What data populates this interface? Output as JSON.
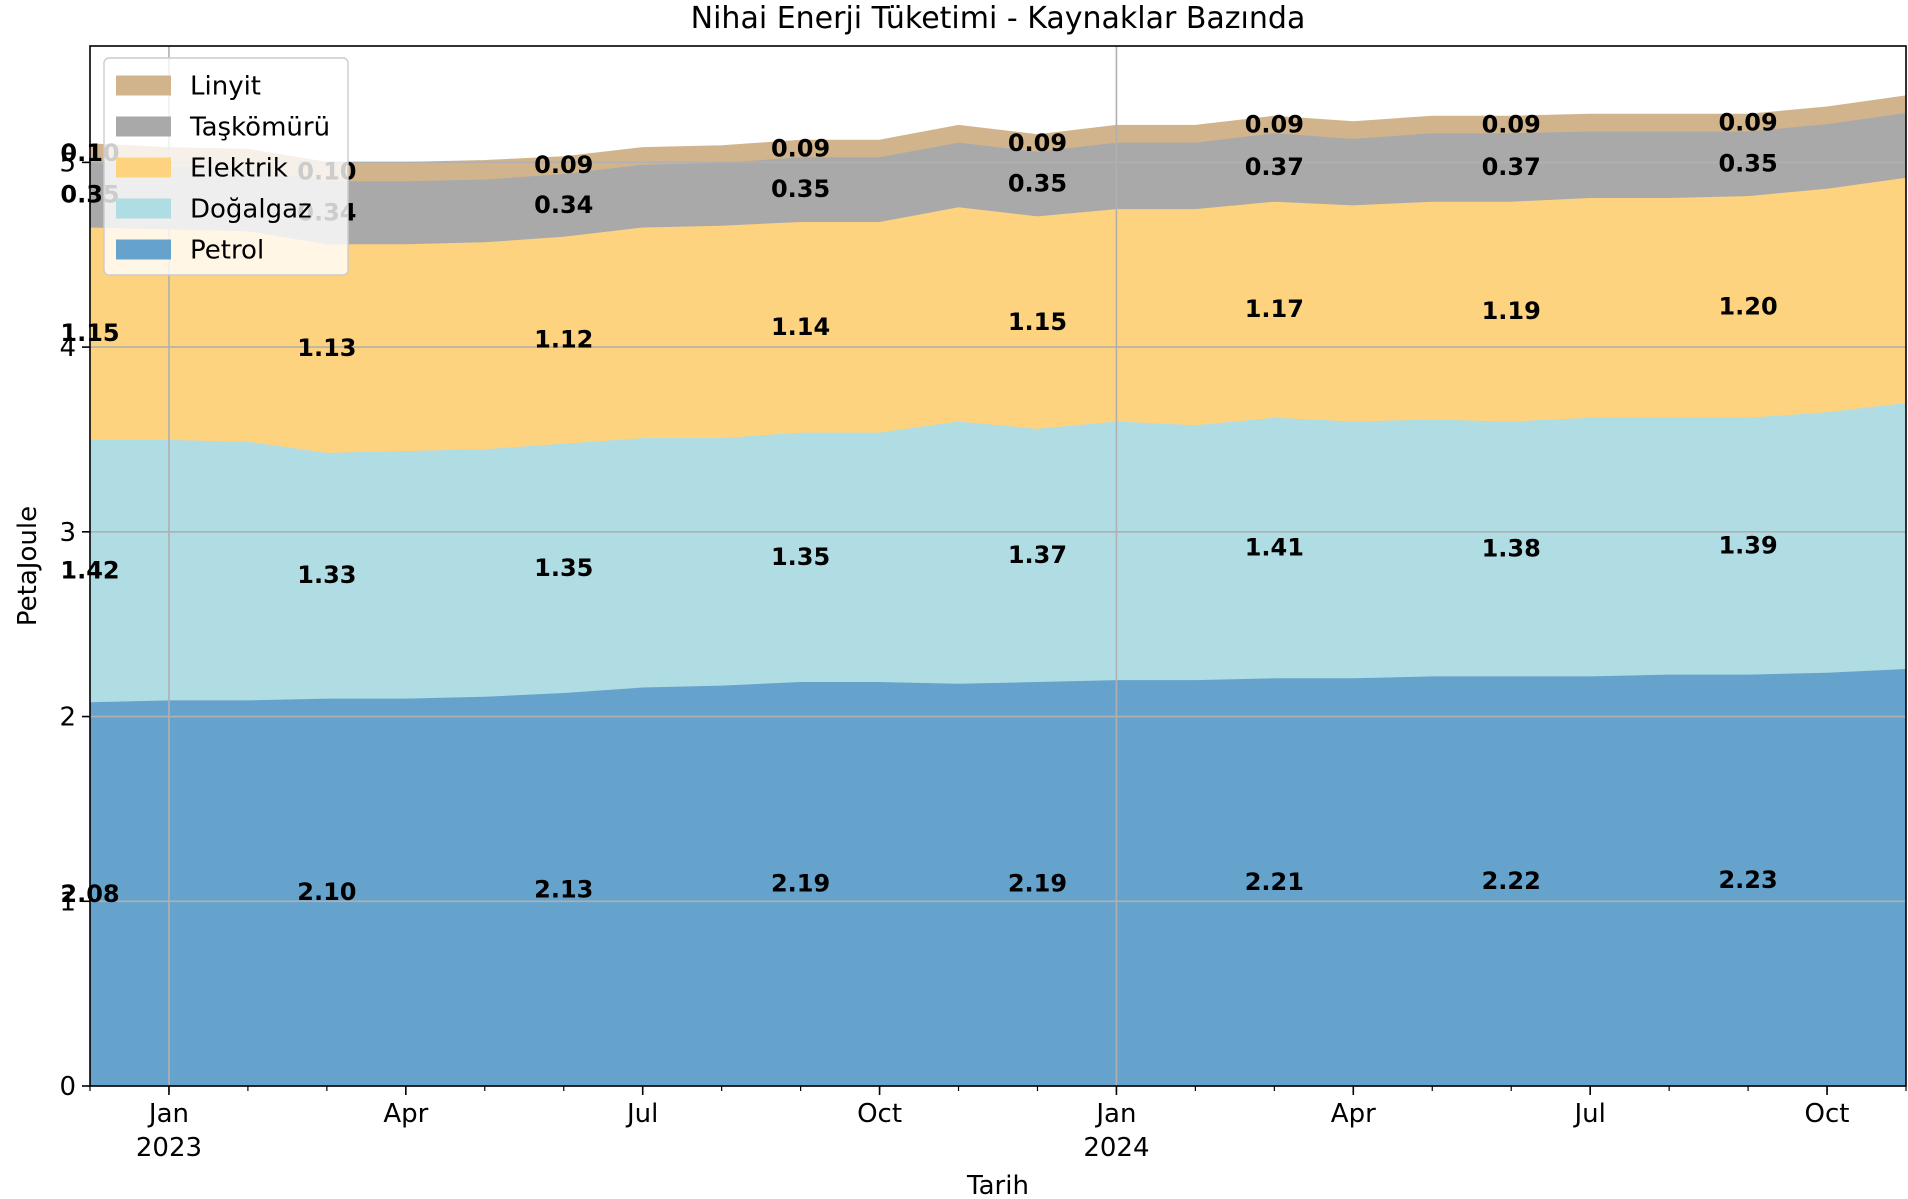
{
  "chart_data": {
    "type": "area",
    "title": "Nihai Enerji Tüketimi - Kaynaklar Bazında",
    "xlabel": "Tarih",
    "ylabel": "PetaJoule",
    "x_range": [
      "2022-12",
      "2024-11"
    ],
    "ylim": [
      0,
      5.63
    ],
    "y_ticks": [
      0,
      1,
      2,
      3,
      4,
      5
    ],
    "x_ticks": [
      {
        "date": "2023-01",
        "label": "Jan",
        "sublabel": "2023"
      },
      {
        "date": "2023-04",
        "label": "Apr",
        "sublabel": ""
      },
      {
        "date": "2023-07",
        "label": "Jul",
        "sublabel": ""
      },
      {
        "date": "2023-10",
        "label": "Oct",
        "sublabel": ""
      },
      {
        "date": "2024-01",
        "label": "Jan",
        "sublabel": "2024"
      },
      {
        "date": "2024-04",
        "label": "Apr",
        "sublabel": ""
      },
      {
        "date": "2024-07",
        "label": "Jul",
        "sublabel": ""
      },
      {
        "date": "2024-10",
        "label": "Oct",
        "sublabel": ""
      }
    ],
    "grid": true,
    "legend_position": "top-left",
    "x": [
      "2022-12",
      "2023-01",
      "2023-02",
      "2023-03",
      "2023-04",
      "2023-05",
      "2023-06",
      "2023-07",
      "2023-08",
      "2023-09",
      "2023-10",
      "2023-11",
      "2023-12",
      "2024-01",
      "2024-02",
      "2024-03",
      "2024-04",
      "2024-05",
      "2024-06",
      "2024-07",
      "2024-08",
      "2024-09",
      "2024-10",
      "2024-11"
    ],
    "series": [
      {
        "name": "Petrol",
        "color": "#66a3cc",
        "values": [
          2.08,
          2.09,
          2.09,
          2.1,
          2.1,
          2.11,
          2.13,
          2.16,
          2.17,
          2.19,
          2.19,
          2.18,
          2.19,
          2.2,
          2.2,
          2.21,
          2.21,
          2.22,
          2.22,
          2.22,
          2.23,
          2.23,
          2.24,
          2.26
        ]
      },
      {
        "name": "Doğalgaz",
        "color": "#b0dde4",
        "values": [
          1.42,
          1.41,
          1.4,
          1.33,
          1.34,
          1.34,
          1.35,
          1.35,
          1.34,
          1.35,
          1.35,
          1.42,
          1.37,
          1.4,
          1.38,
          1.41,
          1.39,
          1.39,
          1.38,
          1.4,
          1.39,
          1.39,
          1.41,
          1.44
        ]
      },
      {
        "name": "Elektrik",
        "color": "#fdd380",
        "values": [
          1.15,
          1.14,
          1.14,
          1.13,
          1.12,
          1.12,
          1.12,
          1.14,
          1.15,
          1.14,
          1.14,
          1.16,
          1.15,
          1.15,
          1.17,
          1.17,
          1.17,
          1.18,
          1.19,
          1.19,
          1.19,
          1.2,
          1.21,
          1.22
        ]
      },
      {
        "name": "Taşkömürü",
        "color": "#a9a9a9",
        "values": [
          0.35,
          0.34,
          0.34,
          0.34,
          0.34,
          0.34,
          0.34,
          0.34,
          0.34,
          0.35,
          0.35,
          0.35,
          0.35,
          0.36,
          0.36,
          0.37,
          0.36,
          0.37,
          0.37,
          0.36,
          0.36,
          0.35,
          0.35,
          0.35
        ]
      },
      {
        "name": "Linyit",
        "color": "#d2b48c",
        "values": [
          0.1,
          0.1,
          0.1,
          0.1,
          0.1,
          0.1,
          0.09,
          0.09,
          0.09,
          0.09,
          0.09,
          0.09,
          0.09,
          0.09,
          0.09,
          0.09,
          0.09,
          0.09,
          0.09,
          0.09,
          0.09,
          0.09,
          0.09,
          0.09
        ]
      }
    ],
    "data_labels": [
      {
        "series": "Petrol",
        "x": "2022-12",
        "value": "2.08"
      },
      {
        "series": "Petrol",
        "x": "2023-03",
        "value": "2.10"
      },
      {
        "series": "Petrol",
        "x": "2023-06",
        "value": "2.13"
      },
      {
        "series": "Petrol",
        "x": "2023-09",
        "value": "2.19"
      },
      {
        "series": "Petrol",
        "x": "2023-12",
        "value": "2.19"
      },
      {
        "series": "Petrol",
        "x": "2024-03",
        "value": "2.21"
      },
      {
        "series": "Petrol",
        "x": "2024-06",
        "value": "2.22"
      },
      {
        "series": "Petrol",
        "x": "2024-09",
        "value": "2.23"
      },
      {
        "series": "Doğalgaz",
        "x": "2022-12",
        "value": "1.42"
      },
      {
        "series": "Doğalgaz",
        "x": "2023-03",
        "value": "1.33"
      },
      {
        "series": "Doğalgaz",
        "x": "2023-06",
        "value": "1.35"
      },
      {
        "series": "Doğalgaz",
        "x": "2023-09",
        "value": "1.35"
      },
      {
        "series": "Doğalgaz",
        "x": "2023-12",
        "value": "1.37"
      },
      {
        "series": "Doğalgaz",
        "x": "2024-03",
        "value": "1.41"
      },
      {
        "series": "Doğalgaz",
        "x": "2024-06",
        "value": "1.38"
      },
      {
        "series": "Doğalgaz",
        "x": "2024-09",
        "value": "1.39"
      },
      {
        "series": "Elektrik",
        "x": "2022-12",
        "value": "1.15"
      },
      {
        "series": "Elektrik",
        "x": "2023-03",
        "value": "1.13"
      },
      {
        "series": "Elektrik",
        "x": "2023-06",
        "value": "1.12"
      },
      {
        "series": "Elektrik",
        "x": "2023-09",
        "value": "1.14"
      },
      {
        "series": "Elektrik",
        "x": "2023-12",
        "value": "1.15"
      },
      {
        "series": "Elektrik",
        "x": "2024-03",
        "value": "1.17"
      },
      {
        "series": "Elektrik",
        "x": "2024-06",
        "value": "1.19"
      },
      {
        "series": "Elektrik",
        "x": "2024-09",
        "value": "1.20"
      },
      {
        "series": "Taşkömürü",
        "x": "2022-12",
        "value": "0.35"
      },
      {
        "series": "Taşkömürü",
        "x": "2023-03",
        "value": "0.34"
      },
      {
        "series": "Taşkömürü",
        "x": "2023-06",
        "value": "0.34"
      },
      {
        "series": "Taşkömürü",
        "x": "2023-09",
        "value": "0.35"
      },
      {
        "series": "Taşkömürü",
        "x": "2023-12",
        "value": "0.35"
      },
      {
        "series": "Taşkömürü",
        "x": "2024-03",
        "value": "0.37"
      },
      {
        "series": "Taşkömürü",
        "x": "2024-06",
        "value": "0.37"
      },
      {
        "series": "Taşkömürü",
        "x": "2024-09",
        "value": "0.35"
      },
      {
        "series": "Linyit",
        "x": "2022-12",
        "value": "0.10"
      },
      {
        "series": "Linyit",
        "x": "2023-03",
        "value": "0.10"
      },
      {
        "series": "Linyit",
        "x": "2023-06",
        "value": "0.09"
      },
      {
        "series": "Linyit",
        "x": "2023-09",
        "value": "0.09"
      },
      {
        "series": "Linyit",
        "x": "2023-12",
        "value": "0.09"
      },
      {
        "series": "Linyit",
        "x": "2024-03",
        "value": "0.09"
      },
      {
        "series": "Linyit",
        "x": "2024-06",
        "value": "0.09"
      },
      {
        "series": "Linyit",
        "x": "2024-09",
        "value": "0.09"
      }
    ]
  }
}
